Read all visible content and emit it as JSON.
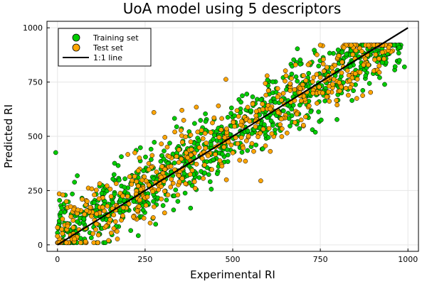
{
  "chart_data": {
    "type": "scatter",
    "title": "UoA model using 5 descriptors",
    "xlabel": "Experimental RI",
    "ylabel": "Predicted RI",
    "xlim": [
      -30,
      1030
    ],
    "ylim": [
      -30,
      1030
    ],
    "xticks": [
      0,
      250,
      500,
      750,
      1000
    ],
    "yticks": [
      0,
      250,
      500,
      750,
      1000
    ],
    "grid": true,
    "legend_position": "top-left",
    "series": [
      {
        "name": "Training set",
        "color": "#00cc00",
        "generated": {
          "n": 900,
          "min": 0,
          "max": 980,
          "slope": 0.96,
          "intercept": 30,
          "spread": 75,
          "seed": 7
        },
        "points": [
          [
            -5,
            425
          ],
          [
            0,
            40
          ],
          [
            0,
            55
          ],
          [
            3,
            90
          ],
          [
            5,
            110
          ],
          [
            8,
            130
          ],
          [
            10,
            150
          ],
          [
            12,
            170
          ],
          [
            6,
            205
          ],
          [
            15,
            60
          ],
          [
            20,
            100
          ],
          [
            2,
            75
          ],
          [
            70,
            215
          ],
          [
            140,
            115
          ],
          [
            295,
            325
          ],
          [
            280,
            95
          ],
          [
            975,
            910
          ],
          [
            990,
            820
          ]
        ]
      },
      {
        "name": "Test set",
        "color": "#ffa500",
        "generated": {
          "n": 520,
          "min": 0,
          "max": 960,
          "slope": 0.95,
          "intercept": 35,
          "spread": 85,
          "seed": 19
        },
        "points": [
          [
            0,
            80
          ],
          [
            5,
            235
          ],
          [
            15,
            230
          ],
          [
            0,
            40
          ],
          [
            220,
            315
          ],
          [
            275,
            610
          ],
          [
            355,
            620
          ],
          [
            400,
            520
          ],
          [
            580,
            295
          ],
          [
            520,
            390
          ]
        ]
      }
    ],
    "reference_line": {
      "name": "1:1 line",
      "x": [
        0,
        1000
      ],
      "y": [
        0,
        1000
      ],
      "color": "#000000"
    }
  }
}
